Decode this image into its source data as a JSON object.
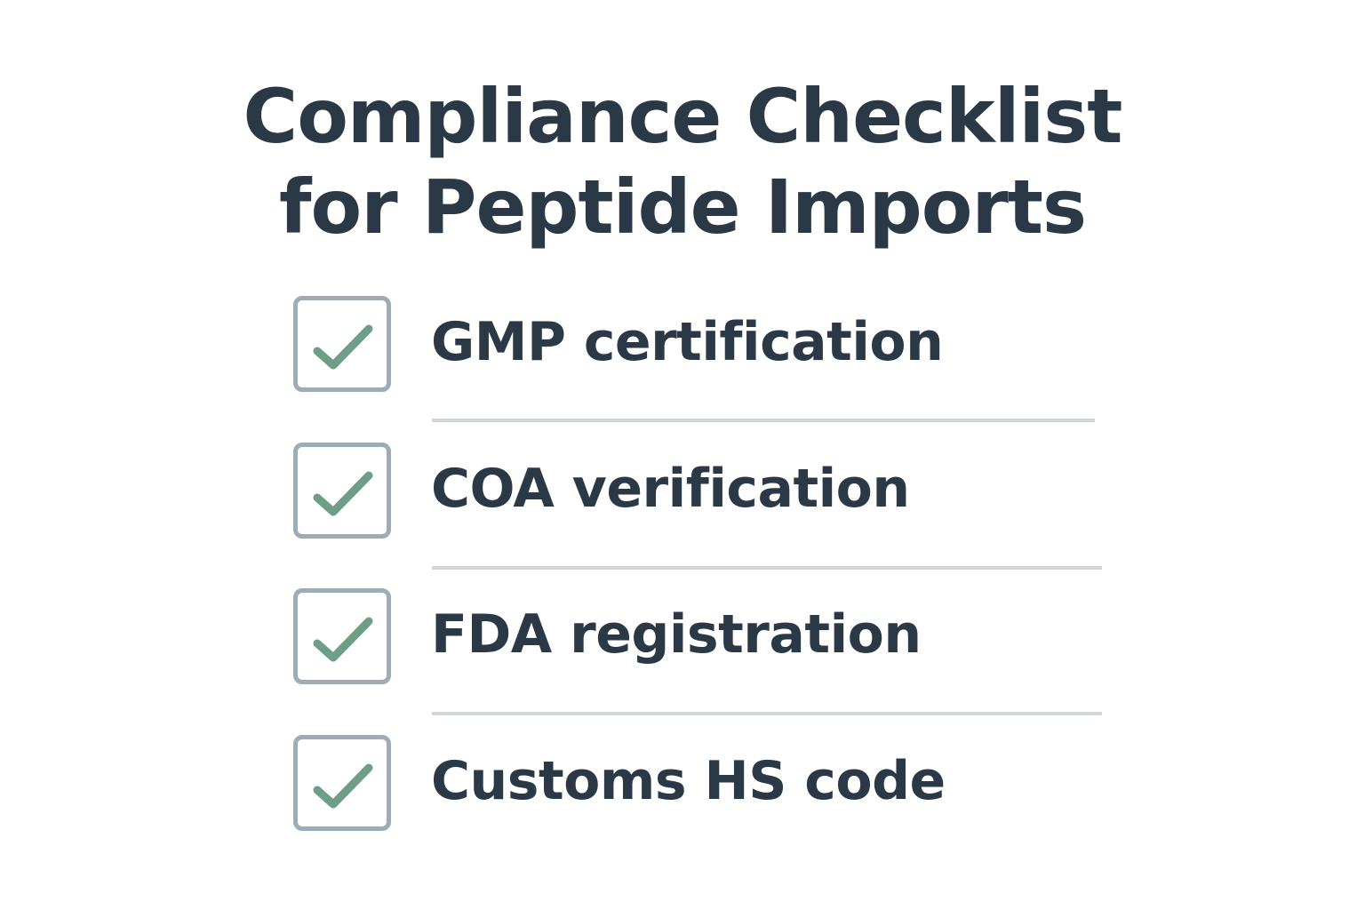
{
  "title": {
    "line1": "Compliance Checklist",
    "line2": "for Peptide Imports"
  },
  "colors": {
    "text": "#2b3947",
    "checkbox_border": "#9eacb4",
    "checkmark": "#6f9e88",
    "divider": "#d2d6d8"
  },
  "items": [
    {
      "label": "GMP certification",
      "checked": true,
      "icon": "checkmark-icon"
    },
    {
      "label": "COA verification",
      "checked": true,
      "icon": "checkmark-icon"
    },
    {
      "label": "FDA registration",
      "checked": true,
      "icon": "checkmark-icon"
    },
    {
      "label": "Customs HS code",
      "checked": true,
      "icon": "checkmark-icon"
    }
  ]
}
